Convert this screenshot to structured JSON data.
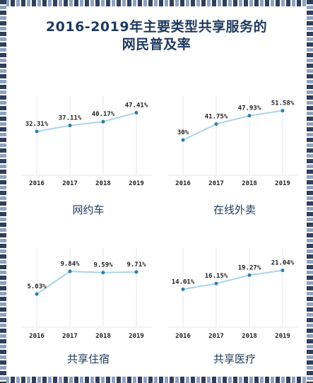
{
  "title_lines": [
    "2016-2019年主要类型共享服务的",
    "网民普及率"
  ],
  "colors": {
    "title": "#1f3a5f",
    "line": "#a9d4ea",
    "point": "#2e7fa8",
    "grid": "#e4e7eb",
    "text": "#222222"
  },
  "chart_data": [
    {
      "type": "line",
      "title": "网约车",
      "categories": [
        "2016",
        "2017",
        "2018",
        "2019"
      ],
      "values": [
        32.31,
        37.11,
        40.17,
        47.41
      ],
      "labels": [
        "32.31%",
        "37.11%",
        "40.17%",
        "47.41%"
      ],
      "unit": "%",
      "grid": true
    },
    {
      "type": "line",
      "title": "在线外卖",
      "categories": [
        "2016",
        "2017",
        "2018",
        "2019"
      ],
      "values": [
        30,
        41.75,
        47.93,
        51.58
      ],
      "labels": [
        "30%",
        "41.75%",
        "47.93%",
        "51.58%"
      ],
      "unit": "%",
      "grid": true
    },
    {
      "type": "line",
      "title": "共享住宿",
      "categories": [
        "2016",
        "2017",
        "2018",
        "2019"
      ],
      "values": [
        5.03,
        9.84,
        9.59,
        9.71
      ],
      "labels": [
        "5.03%",
        "9.84%",
        "9.59%",
        "9.71%"
      ],
      "unit": "%",
      "grid": true
    },
    {
      "type": "line",
      "title": "共享医疗",
      "categories": [
        "2016",
        "2017",
        "2018",
        "2019"
      ],
      "values": [
        14.01,
        16.15,
        19.27,
        21.04
      ],
      "labels": [
        "14.01%",
        "16.15%",
        "19.27%",
        "21.04%"
      ],
      "unit": "%",
      "grid": true
    }
  ]
}
